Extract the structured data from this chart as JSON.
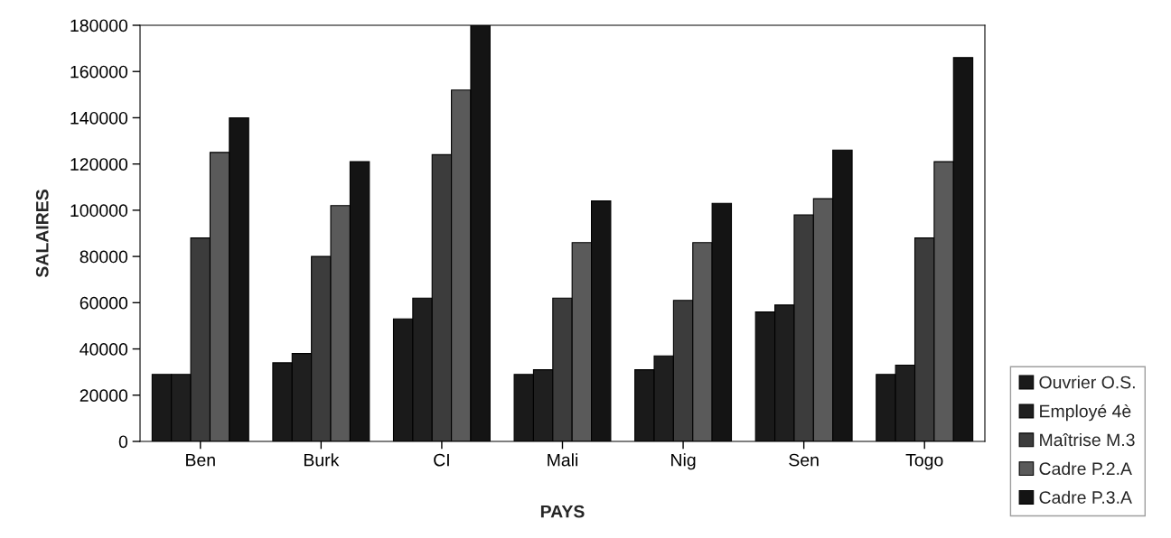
{
  "chart_data": {
    "type": "bar",
    "xlabel": "PAYS",
    "ylabel": "SALAIRES",
    "categories": [
      "Ben",
      "Burk",
      "CI",
      "Mali",
      "Nig",
      "Sen",
      "Togo"
    ],
    "series": [
      {
        "name": "Ouvrier O.S.",
        "color": "#1a1a1a",
        "values": [
          29000,
          34000,
          53000,
          29000,
          31000,
          56000,
          29000
        ]
      },
      {
        "name": "Employé 4è",
        "color": "#1f1f1f",
        "values": [
          29000,
          38000,
          62000,
          31000,
          37000,
          59000,
          33000
        ]
      },
      {
        "name": "Maîtrise M.3",
        "color": "#3c3c3c",
        "values": [
          88000,
          80000,
          124000,
          62000,
          61000,
          98000,
          88000
        ]
      },
      {
        "name": "Cadre P.2.A",
        "color": "#5a5a5a",
        "values": [
          125000,
          102000,
          152000,
          86000,
          86000,
          105000,
          121000
        ]
      },
      {
        "name": "Cadre P.3.A",
        "color": "#141414",
        "values": [
          140000,
          121000,
          180000,
          104000,
          103000,
          126000,
          166000
        ]
      }
    ],
    "ylim": [
      0,
      180000
    ],
    "yticks": [
      0,
      20000,
      40000,
      60000,
      80000,
      100000,
      120000,
      140000,
      160000,
      180000
    ],
    "grid": false,
    "legend": "right"
  }
}
